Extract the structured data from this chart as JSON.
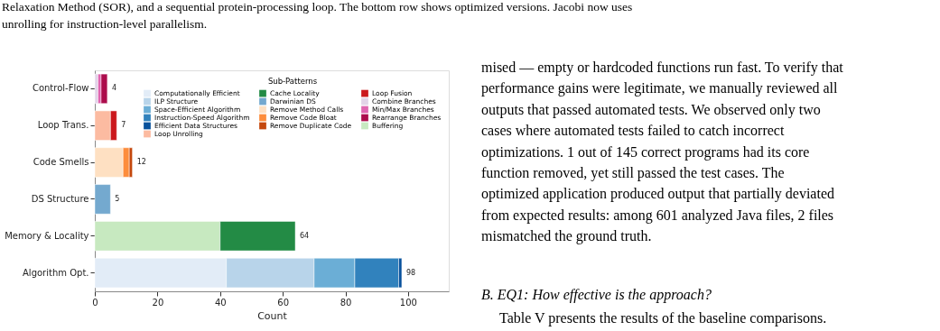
{
  "chart_data": {
    "type": "bar",
    "orientation": "horizontal",
    "stacked": true,
    "xlabel": "Count",
    "legend_title": "Sub-Patterns",
    "legend": "top right",
    "categories": [
      "Control-Flow",
      "Loop Trans.",
      "Code Smells",
      "DS Structure",
      "Memory & Locality",
      "Algorithm Opt."
    ],
    "series": [
      {
        "name": "Computationally Efficient",
        "color": "#e2ecf7",
        "values": [
          null,
          null,
          null,
          null,
          null,
          42
        ]
      },
      {
        "name": "ILP Structure",
        "color": "#b8d4ea",
        "values": [
          null,
          null,
          null,
          null,
          null,
          28
        ]
      },
      {
        "name": "Space-Efficient Algorithm",
        "color": "#6baed6",
        "values": [
          null,
          null,
          null,
          null,
          null,
          13
        ]
      },
      {
        "name": "Instruction-Speed Algorithm",
        "color": "#3182bd",
        "values": [
          null,
          null,
          null,
          null,
          null,
          14
        ]
      },
      {
        "name": "Efficient Data Structures",
        "color": "#08519c",
        "values": [
          null,
          null,
          null,
          null,
          null,
          1
        ]
      },
      {
        "name": "Buffering",
        "color": "#c7e9c0",
        "values": [
          null,
          null,
          null,
          null,
          40,
          null
        ]
      },
      {
        "name": "Cache Locality",
        "color": "#238b45",
        "values": [
          null,
          null,
          null,
          null,
          24,
          null
        ]
      },
      {
        "name": "Darwinian DS",
        "color": "#74a9cf",
        "values": [
          null,
          null,
          null,
          5,
          null,
          null
        ]
      },
      {
        "name": "Remove Method Calls",
        "color": "#fee0c2",
        "values": [
          null,
          null,
          9,
          null,
          null,
          null
        ]
      },
      {
        "name": "Remove Code Bloat",
        "color": "#fd8d3c",
        "values": [
          null,
          null,
          2,
          null,
          null,
          null
        ]
      },
      {
        "name": "Remove Duplicate Code",
        "color": "#c4470c",
        "values": [
          null,
          null,
          1,
          null,
          null,
          null
        ]
      },
      {
        "name": "Loop Unrolling",
        "color": "#fcbba1",
        "values": [
          null,
          5,
          null,
          null,
          null,
          null
        ]
      },
      {
        "name": "Loop Fusion",
        "color": "#cb181d",
        "values": [
          null,
          2,
          null,
          null,
          null,
          null
        ]
      },
      {
        "name": "Combine Branches",
        "color": "#e2d3e8",
        "values": [
          1,
          null,
          null,
          null,
          null,
          null
        ]
      },
      {
        "name": "Min/Max Branches",
        "color": "#df65b0",
        "values": [
          1,
          null,
          null,
          null,
          null,
          null
        ]
      },
      {
        "name": "Rearrange Branches",
        "color": "#ac0c4c",
        "values": [
          2,
          null,
          null,
          null,
          null,
          null
        ]
      }
    ],
    "totals": [
      "4",
      "7",
      "12",
      "5",
      "64",
      "98"
    ],
    "xlim": [
      0,
      113
    ],
    "xticks": [
      0,
      20,
      40,
      60,
      80,
      100
    ],
    "annotations": [
      "Relaxation Method (SOR), and a sequential protein-processing loop. The bottom row shows optimized versions. Jacobi now uses unrolling for instruction-level parallelism.",
      "mised — empty or hardcoded functions run fast. To verify that performance gains were legitimate, we manually reviewed all outputs that passed automated tests. We observed only two cases where automated tests failed to catch incorrect optimizations. 1 out of 145 correct programs had its core function removed, yet still passed the test cases. The optimized application produced output that partially deviated from expected results: among 601 analyzed Java files, 2 files mismatched the ground truth.",
      "B. EQ1: How effective is the approach?",
      "Table V presents the results of the baseline comparisons."
    ]
  }
}
